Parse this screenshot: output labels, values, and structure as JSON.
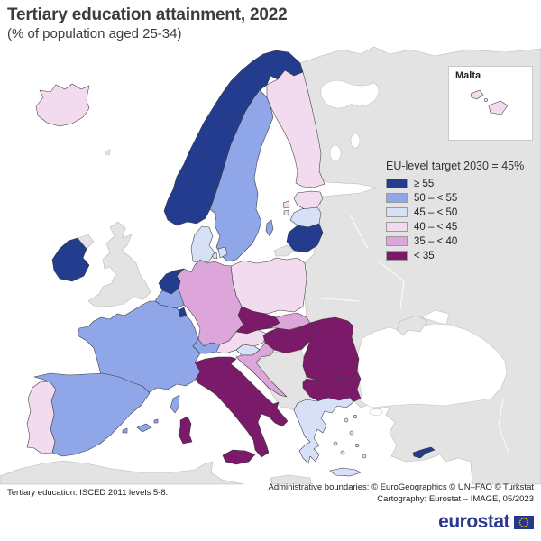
{
  "header": {
    "title": "Tertiary education attainment, 2022",
    "subtitle": "(% of population aged 25-34)"
  },
  "legend": {
    "title": "EU-level target 2030 = 45%",
    "items": [
      {
        "key": "b1",
        "label": "≥ 55",
        "color": "#233c8e"
      },
      {
        "key": "b2",
        "label": "50 – < 55",
        "color": "#8fa6e8"
      },
      {
        "key": "b3",
        "label": "45 – < 50",
        "color": "#d6e1f8"
      },
      {
        "key": "b4",
        "label": "40 – < 45",
        "color": "#f2dbee"
      },
      {
        "key": "b5",
        "label": "35 – < 40",
        "color": "#dca6da"
      },
      {
        "key": "b6",
        "label": "< 35",
        "color": "#7a1a68"
      }
    ]
  },
  "inset": {
    "label": "Malta"
  },
  "map": {
    "sea_color": "#ffffff",
    "no_data_color": "#e3e3e3",
    "countries": [
      {
        "id": "norway",
        "category": "b1"
      },
      {
        "id": "ireland",
        "category": "b1"
      },
      {
        "id": "netherlands",
        "category": "b1"
      },
      {
        "id": "luxembourg",
        "category": "b1"
      },
      {
        "id": "lithuania",
        "category": "b1"
      },
      {
        "id": "cyprus",
        "category": "b1"
      },
      {
        "id": "sweden",
        "category": "b2"
      },
      {
        "id": "gotland",
        "category": "b2"
      },
      {
        "id": "france",
        "category": "b2"
      },
      {
        "id": "corsica",
        "category": "b2"
      },
      {
        "id": "spain",
        "category": "b2"
      },
      {
        "id": "balearic-islands",
        "category": "b2"
      },
      {
        "id": "belgium",
        "category": "b2"
      },
      {
        "id": "switzerland",
        "category": "b2"
      },
      {
        "id": "denmark",
        "category": "b3"
      },
      {
        "id": "latvia",
        "category": "b3"
      },
      {
        "id": "slovenia",
        "category": "b3"
      },
      {
        "id": "greece",
        "category": "b3"
      },
      {
        "id": "crete",
        "category": "b3"
      },
      {
        "id": "greek-islands",
        "category": "b3"
      },
      {
        "id": "finland",
        "category": "b4"
      },
      {
        "id": "estonia",
        "category": "b4"
      },
      {
        "id": "estonian-islands",
        "category": "b4"
      },
      {
        "id": "poland",
        "category": "b4"
      },
      {
        "id": "austria",
        "category": "b4"
      },
      {
        "id": "portugal",
        "category": "b4"
      },
      {
        "id": "iceland",
        "category": "b4"
      },
      {
        "id": "malta",
        "category": "b4"
      },
      {
        "id": "germany",
        "category": "b5"
      },
      {
        "id": "slovakia",
        "category": "b5"
      },
      {
        "id": "croatia",
        "category": "b5"
      },
      {
        "id": "czechia",
        "category": "b6"
      },
      {
        "id": "hungary",
        "category": "b6"
      },
      {
        "id": "italy",
        "category": "b6"
      },
      {
        "id": "sicily",
        "category": "b6"
      },
      {
        "id": "sardinia",
        "category": "b6"
      },
      {
        "id": "romania",
        "category": "b6"
      },
      {
        "id": "bulgaria",
        "category": "b6"
      }
    ]
  },
  "footer": {
    "left": "Tertiary education: ISCED 2011 levels 5-8.",
    "right_line1": "Administrative boundaries: © EuroGeographics © UN–FAO © Turkstat",
    "right_line2": "Cartography: Eurostat – IMAGE, 05/2023"
  },
  "logo": {
    "text": "eurostat"
  }
}
